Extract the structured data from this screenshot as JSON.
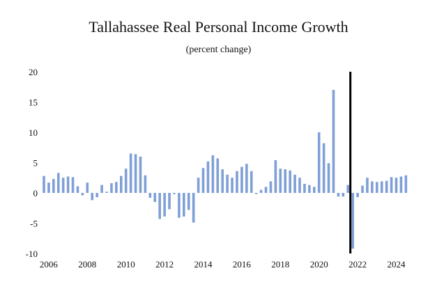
{
  "chart_data": {
    "type": "bar",
    "title": "Tallahassee Real Personal Income Growth",
    "subtitle": "(percent change)",
    "xlabel": "",
    "ylabel": "",
    "ylim": [
      -10,
      20
    ],
    "yticks": [
      20,
      15,
      10,
      5,
      0,
      -5,
      -10
    ],
    "xtick_labels": [
      "2006",
      "2008",
      "2010",
      "2012",
      "2014",
      "2016",
      "2018",
      "2020",
      "2022",
      "2024"
    ],
    "grid": false,
    "bar_color": "#7f9fd6",
    "forecast_line_color": "#000000",
    "forecast_line_after_quarter": "2021Q3",
    "quarters": [
      "2005Q4",
      "2006Q1",
      "2006Q2",
      "2006Q3",
      "2006Q4",
      "2007Q1",
      "2007Q2",
      "2007Q3",
      "2007Q4",
      "2008Q1",
      "2008Q2",
      "2008Q3",
      "2008Q4",
      "2009Q1",
      "2009Q2",
      "2009Q3",
      "2009Q4",
      "2010Q1",
      "2010Q2",
      "2010Q3",
      "2010Q4",
      "2011Q1",
      "2011Q2",
      "2011Q3",
      "2011Q4",
      "2012Q1",
      "2012Q2",
      "2012Q3",
      "2012Q4",
      "2013Q1",
      "2013Q2",
      "2013Q3",
      "2013Q4",
      "2014Q1",
      "2014Q2",
      "2014Q3",
      "2014Q4",
      "2015Q1",
      "2015Q2",
      "2015Q3",
      "2015Q4",
      "2016Q1",
      "2016Q2",
      "2016Q3",
      "2016Q4",
      "2017Q1",
      "2017Q2",
      "2017Q3",
      "2017Q4",
      "2018Q1",
      "2018Q2",
      "2018Q3",
      "2018Q4",
      "2019Q1",
      "2019Q2",
      "2019Q3",
      "2019Q4",
      "2020Q1",
      "2020Q2",
      "2020Q3",
      "2020Q4",
      "2021Q1",
      "2021Q2",
      "2021Q3",
      "2021Q4",
      "2022Q1",
      "2022Q2",
      "2022Q3",
      "2022Q4",
      "2023Q1",
      "2023Q2",
      "2023Q3",
      "2023Q4",
      "2024Q1",
      "2024Q2",
      "2024Q3",
      "2024Q4"
    ],
    "values": [
      2.8,
      1.7,
      2.3,
      3.3,
      2.5,
      2.7,
      2.6,
      1.1,
      -0.4,
      1.7,
      -1.2,
      -0.7,
      1.3,
      0.2,
      1.6,
      1.8,
      2.8,
      4.0,
      6.5,
      6.4,
      6.0,
      2.9,
      -0.8,
      -1.5,
      -4.3,
      -3.9,
      -2.7,
      -0.2,
      -4.1,
      -3.9,
      -2.8,
      -4.9,
      2.5,
      4.1,
      5.2,
      6.2,
      5.7,
      3.9,
      3.0,
      2.5,
      3.6,
      4.3,
      4.8,
      3.6,
      -0.2,
      0.5,
      1.0,
      1.9,
      5.4,
      4.0,
      3.9,
      3.7,
      3.0,
      2.5,
      1.5,
      1.3,
      1.0,
      10.0,
      8.2,
      4.9,
      17.0,
      -0.6,
      -0.6,
      1.3,
      -9.2,
      -0.7,
      1.2,
      2.5,
      1.9,
      1.8,
      1.9,
      2.0,
      2.6,
      2.5,
      2.7,
      2.9,
      0
    ]
  }
}
